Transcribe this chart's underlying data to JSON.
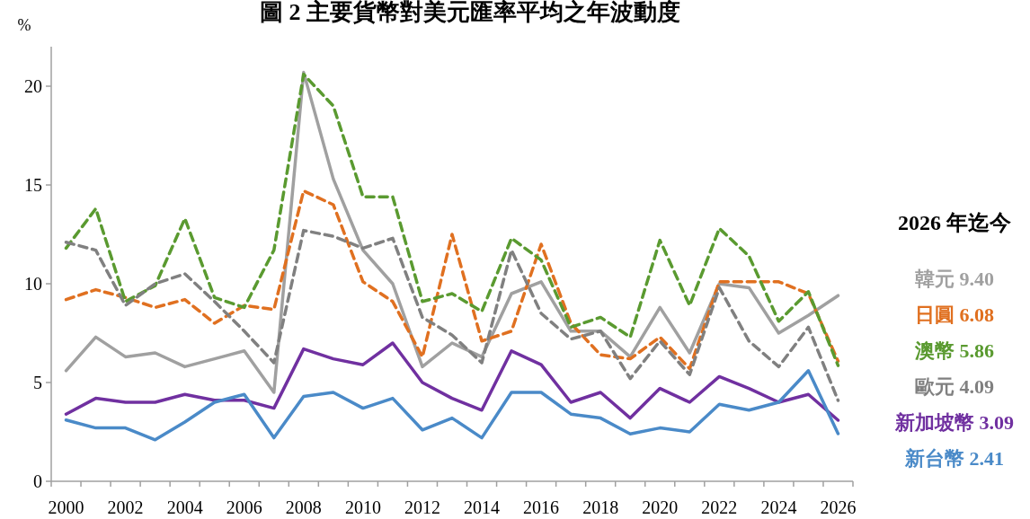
{
  "chart_data": {
    "type": "line",
    "title": "圖 2 主要貨幣對美元匯率平均之年波動度",
    "ylabel": "%",
    "categories": [
      "2000",
      null,
      "2002",
      null,
      "2004",
      null,
      "2006",
      null,
      "2008",
      null,
      "2010",
      null,
      "2012",
      null,
      "2014",
      null,
      "2016",
      null,
      "2018",
      null,
      "2020",
      null,
      "2022",
      null,
      "2024",
      null,
      "2026"
    ],
    "series": [
      {
        "name": "韓元 9.40",
        "color": "#a0a0a0",
        "line_style": "solid",
        "values": [
          5.6,
          7.3,
          6.3,
          6.5,
          5.8,
          6.2,
          6.6,
          4.5,
          20.7,
          15.3,
          11.7,
          10.0,
          5.8,
          7.0,
          6.3,
          9.5,
          10.1,
          7.6,
          7.6,
          6.3,
          8.8,
          6.5,
          10.0,
          9.8,
          7.5,
          8.4,
          9.4
        ]
      },
      {
        "name": "日圓 6.08",
        "color": "#e07020",
        "line_style": "dashed",
        "values": [
          9.2,
          9.7,
          9.3,
          8.8,
          9.2,
          8.0,
          8.9,
          8.7,
          14.7,
          14.0,
          10.1,
          9.1,
          6.3,
          12.5,
          7.1,
          7.6,
          12.0,
          8.0,
          6.4,
          6.2,
          7.3,
          5.7,
          10.1,
          10.1,
          10.1,
          9.5,
          6.08
        ]
      },
      {
        "name": "澳幣 5.86",
        "color": "#5a9a30",
        "line_style": "dashed",
        "values": [
          11.8,
          13.8,
          9.1,
          9.9,
          13.3,
          9.3,
          8.8,
          11.7,
          20.6,
          19.0,
          14.4,
          14.4,
          9.1,
          9.5,
          8.6,
          12.3,
          11.2,
          7.8,
          8.3,
          7.3,
          12.2,
          8.9,
          12.8,
          11.4,
          8.1,
          9.6,
          5.86
        ]
      },
      {
        "name": "歐元 4.09",
        "color": "#808080",
        "line_style": "dashed",
        "values": [
          12.1,
          11.7,
          8.9,
          10.0,
          10.5,
          9.1,
          7.6,
          6.0,
          12.7,
          12.4,
          11.8,
          12.3,
          8.3,
          7.4,
          6.0,
          11.7,
          8.5,
          7.2,
          7.6,
          5.2,
          7.1,
          5.4,
          9.8,
          7.1,
          5.8,
          7.8,
          4.09
        ]
      },
      {
        "name": "新加坡幣 3.09",
        "color": "#7030a0",
        "line_style": "solid",
        "values": [
          3.4,
          4.2,
          4.0,
          4.0,
          4.4,
          4.1,
          4.1,
          3.7,
          6.7,
          6.2,
          5.9,
          7.0,
          5.0,
          4.2,
          3.6,
          6.6,
          5.9,
          4.0,
          4.5,
          3.2,
          4.7,
          4.0,
          5.3,
          4.7,
          4.0,
          4.4,
          3.09
        ]
      },
      {
        "name": "新台幣 2.41",
        "color": "#4a8ac8",
        "line_style": "solid",
        "values": [
          3.1,
          2.7,
          2.7,
          2.1,
          3.0,
          4.0,
          4.4,
          2.2,
          4.3,
          4.5,
          3.7,
          4.2,
          2.6,
          3.2,
          2.2,
          4.5,
          4.5,
          3.4,
          3.2,
          2.4,
          2.7,
          2.5,
          3.9,
          3.6,
          4.0,
          5.6,
          2.41
        ]
      }
    ],
    "ylim": [
      0,
      22
    ],
    "yticks": [
      0,
      5,
      10,
      15,
      20
    ],
    "legend": "right",
    "legend_title": "2026 年迄今"
  }
}
